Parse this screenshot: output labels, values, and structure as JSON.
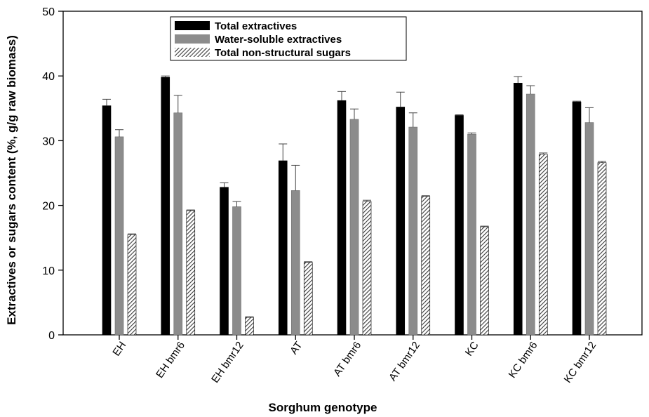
{
  "chart_data": {
    "type": "bar",
    "title": "",
    "xlabel": "Sorghum genotype",
    "ylabel": "Extractives or sugars content (%, g/g raw biomass)",
    "ylim": [
      0,
      50
    ],
    "yticks": [
      "0",
      "10",
      "20",
      "30",
      "40",
      "50"
    ],
    "categories": [
      "EH",
      "EH bmr6",
      "EH bmr12",
      "AT",
      "AT bmr6",
      "AT bmr12",
      "KC",
      "KC bmr6",
      "KC bmr12"
    ],
    "series": [
      {
        "name": "Total extractives",
        "color": "#000000",
        "pattern": "solid",
        "values": [
          35.4,
          39.8,
          22.8,
          26.9,
          36.2,
          35.2,
          33.9,
          38.9,
          36.0
        ],
        "errors": [
          1.0,
          0.2,
          0.7,
          2.6,
          1.4,
          2.3,
          0.1,
          1.0,
          0.1
        ]
      },
      {
        "name": "Water-soluble extractives",
        "color": "#8c8c8c",
        "pattern": "solid",
        "values": [
          30.6,
          34.3,
          19.8,
          22.3,
          33.3,
          32.1,
          31.0,
          37.2,
          32.8
        ],
        "errors": [
          1.1,
          2.7,
          0.8,
          3.9,
          1.6,
          2.2,
          0.2,
          1.3,
          2.3
        ]
      },
      {
        "name": "Total non-structural sugars",
        "color": "#555555",
        "pattern": "hatch",
        "values": [
          15.5,
          19.2,
          2.7,
          11.2,
          20.6,
          21.4,
          16.7,
          27.9,
          26.6
        ],
        "errors": [
          0.1,
          0.1,
          0.1,
          0.1,
          0.2,
          0.1,
          0.1,
          0.2,
          0.2
        ]
      }
    ],
    "legend_position": "top-left",
    "grid": false
  }
}
